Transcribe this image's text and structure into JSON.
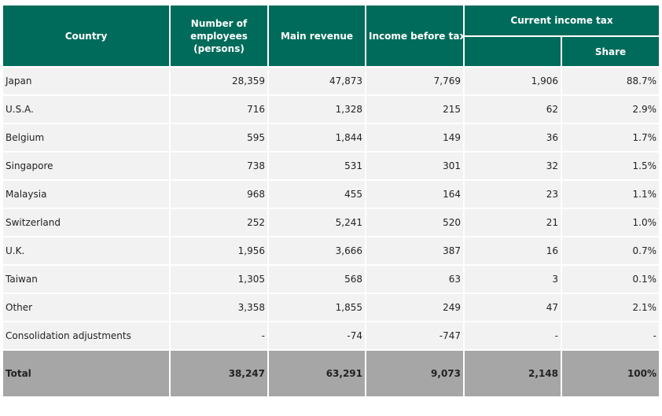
{
  "header": {
    "country": "Country",
    "employees": "Number of employees (persons)",
    "revenue": "Main revenue",
    "income": "Income before tax",
    "tax": "Current income tax",
    "share": "Share"
  },
  "rows": [
    {
      "country": "Japan",
      "employees": "28,359",
      "revenue": "47,873",
      "income": "7,769",
      "tax": "1,906",
      "share": "88.7%"
    },
    {
      "country": "U.S.A.",
      "employees": "716",
      "revenue": "1,328",
      "income": "215",
      "tax": "62",
      "share": "2.9%"
    },
    {
      "country": "Belgium",
      "employees": "595",
      "revenue": "1,844",
      "income": "149",
      "tax": "36",
      "share": "1.7%"
    },
    {
      "country": "Singapore",
      "employees": "738",
      "revenue": "531",
      "income": "301",
      "tax": "32",
      "share": "1.5%"
    },
    {
      "country": "Malaysia",
      "employees": "968",
      "revenue": "455",
      "income": "164",
      "tax": "23",
      "share": "1.1%"
    },
    {
      "country": "Switzerland",
      "employees": "252",
      "revenue": "5,241",
      "income": "520",
      "tax": "21",
      "share": "1.0%"
    },
    {
      "country": "U.K.",
      "employees": "1,956",
      "revenue": "3,666",
      "income": "387",
      "tax": "16",
      "share": "0.7%"
    },
    {
      "country": "Taiwan",
      "employees": "1,305",
      "revenue": "568",
      "income": "63",
      "tax": "3",
      "share": "0.1%"
    },
    {
      "country": "Other",
      "employees": "3,358",
      "revenue": "1,855",
      "income": "249",
      "tax": "47",
      "share": "2.1%"
    },
    {
      "country": "Consolidation adjustments",
      "employees": "-",
      "revenue": "-74",
      "income": "-747",
      "tax": "-",
      "share": "-"
    }
  ],
  "total": {
    "country": "Total",
    "employees": "38,247",
    "revenue": "63,291",
    "income": "9,073",
    "tax": "2,148",
    "share": "100%"
  },
  "colors": {
    "header_bg": "#006b5a",
    "row_bg": "#f2f2f2",
    "total_bg": "#a6a6a6"
  }
}
